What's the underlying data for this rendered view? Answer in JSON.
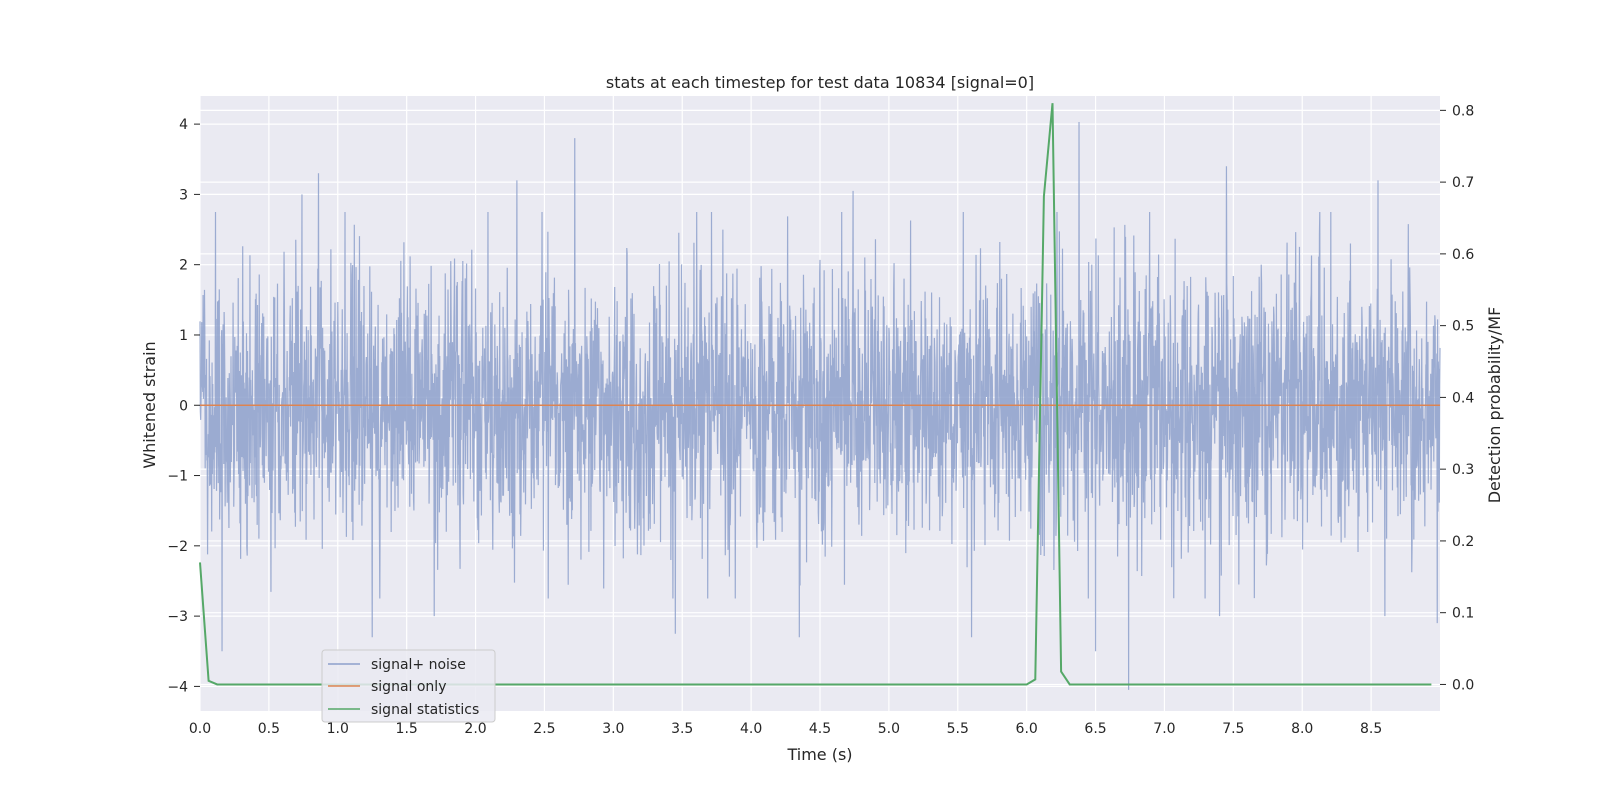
{
  "chart_data": {
    "type": "line",
    "title": "stats at each timestep for test data 10834 [signal=0]",
    "xlabel": "Time (s)",
    "ylabel": "Whitened strain",
    "y2label": "Detection probability/MF",
    "xlim": [
      0.0,
      9.0
    ],
    "ylim": [
      -4.35,
      4.4
    ],
    "y2lim": [
      -0.037,
      0.82
    ],
    "x_ticks": [
      "0.0",
      "0.5",
      "1.0",
      "1.5",
      "2.0",
      "2.5",
      "3.0",
      "3.5",
      "4.0",
      "4.5",
      "5.0",
      "5.5",
      "6.0",
      "6.5",
      "7.0",
      "7.5",
      "8.0",
      "8.5"
    ],
    "y_ticks": [
      "4",
      "3",
      "2",
      "1",
      "0",
      "−1",
      "−2",
      "−3",
      "−4"
    ],
    "y2_ticks": [
      "0.8",
      "0.7",
      "0.6",
      "0.5",
      "0.4",
      "0.3",
      "0.2",
      "0.1",
      "0.0"
    ],
    "grid": true,
    "legend_position": "lower-left",
    "legend": [
      "signal+ noise",
      "signal only",
      "signal statistics"
    ],
    "series": [
      {
        "name": "signal+ noise",
        "color": "#8da0cb",
        "axis": "left",
        "description": "whitened strain noise, approx. Gaussian",
        "peaks": [
          [
            0.86,
            3.3
          ],
          [
            0.74,
            3.0
          ],
          [
            2.3,
            3.2
          ],
          [
            2.72,
            3.8
          ],
          [
            4.74,
            3.05
          ],
          [
            6.38,
            4.03
          ],
          [
            7.45,
            3.4
          ],
          [
            8.55,
            3.2
          ],
          [
            1.25,
            -3.3
          ],
          [
            1.7,
            -3.0
          ],
          [
            3.45,
            -3.25
          ],
          [
            4.35,
            -3.3
          ],
          [
            5.6,
            -3.3
          ],
          [
            6.5,
            -3.5
          ],
          [
            6.74,
            -4.05
          ],
          [
            7.4,
            -3.0
          ],
          [
            8.6,
            -3.0
          ],
          [
            0.16,
            -3.5
          ],
          [
            8.98,
            -3.1
          ]
        ]
      },
      {
        "name": "signal only",
        "color": "#dd8452",
        "axis": "left",
        "x": [
          0.0,
          9.0
        ],
        "y": [
          0.0,
          0.0
        ]
      },
      {
        "name": "signal statistics",
        "color": "#55a868",
        "axis": "right",
        "x": [
          0.0,
          0.0625,
          0.125,
          0.25,
          0.5,
          1.0,
          2.0,
          3.0,
          4.0,
          5.0,
          5.75,
          6.0,
          6.0625,
          6.125,
          6.1875,
          6.25,
          6.3125,
          6.5,
          7.0,
          8.0,
          8.9375
        ],
        "y": [
          0.17,
          0.005,
          0.0,
          0.0,
          0.0,
          0.0,
          0.0,
          0.0,
          0.0,
          0.0,
          0.0,
          0.0,
          0.007,
          0.68,
          0.81,
          0.018,
          0.0,
          0.0,
          0.0,
          0.0,
          0.0
        ]
      }
    ]
  }
}
